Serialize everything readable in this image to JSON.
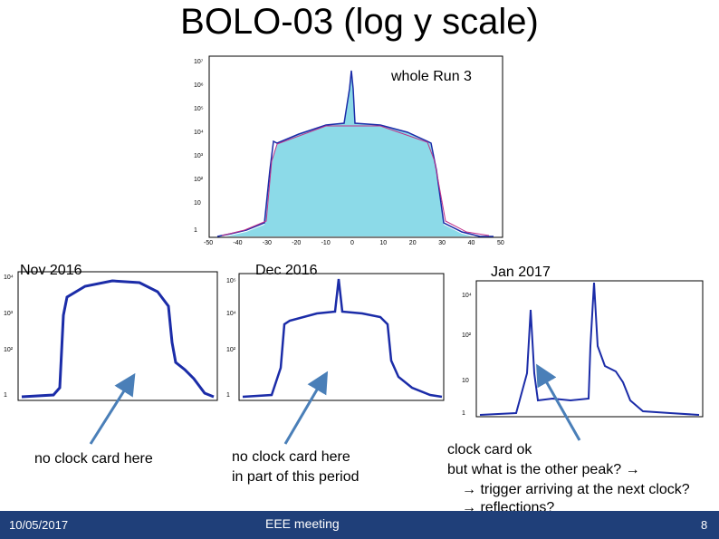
{
  "slide": {
    "title": "BOLO-03 (log y scale)",
    "colors": {
      "histogram_line": "#1b2ca8",
      "fill": "#7fd6e6",
      "fit": "#c0308a",
      "arrow": "#4a7fb8",
      "footer": "#1f3f79"
    }
  },
  "plots": {
    "run3": {
      "label": "whole Run 3",
      "x_ticks": [
        "-50",
        "-40",
        "-30",
        "-20",
        "-10",
        "0",
        "10",
        "20",
        "30",
        "40",
        "50"
      ]
    },
    "nov": {
      "label": "Nov 2016"
    },
    "dec": {
      "label": "Dec 2016"
    },
    "jan": {
      "label": "Jan 2017"
    }
  },
  "notes": {
    "nov": "no clock card here",
    "dec_line1": "no clock card here",
    "dec_line2": "in part of this period",
    "jan_line1": "clock card ok",
    "jan_line2": "but what is the other peak? →",
    "jan_line3": "→ trigger arriving at the next clock?",
    "jan_line4": "→ reflections?"
  },
  "footer": {
    "date": "10/05/2017",
    "meeting": "EEE meeting",
    "page": "8"
  }
}
